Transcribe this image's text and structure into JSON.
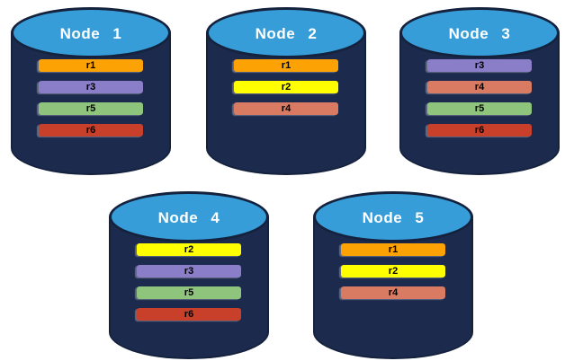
{
  "colors": {
    "background": "#FFFFFF",
    "cylinder_body": "#1C2A4D",
    "cylinder_outline": "#15223E",
    "cylinder_top": "#379DD8",
    "title_text": "#FFFFFF",
    "bar_text": "#000000"
  },
  "replica_colors": {
    "r1": "#FCA204",
    "r2": "#FFFF00",
    "r3": "#8A7EC8",
    "r4": "#D97A62",
    "r5": "#8FC47C",
    "r6": "#C8402A"
  },
  "nodes": [
    {
      "label": "Node 1",
      "replicas": [
        "r1",
        "r3",
        "r5",
        "r6"
      ]
    },
    {
      "label": "Node 2",
      "replicas": [
        "r1",
        "r2",
        "r4"
      ]
    },
    {
      "label": "Node 3",
      "replicas": [
        "r3",
        "r4",
        "r5",
        "r6"
      ]
    },
    {
      "label": "Node 4",
      "replicas": [
        "r2",
        "r3",
        "r5",
        "r6"
      ]
    },
    {
      "label": "Node 5",
      "replicas": [
        "r1",
        "r2",
        "r4"
      ]
    }
  ]
}
